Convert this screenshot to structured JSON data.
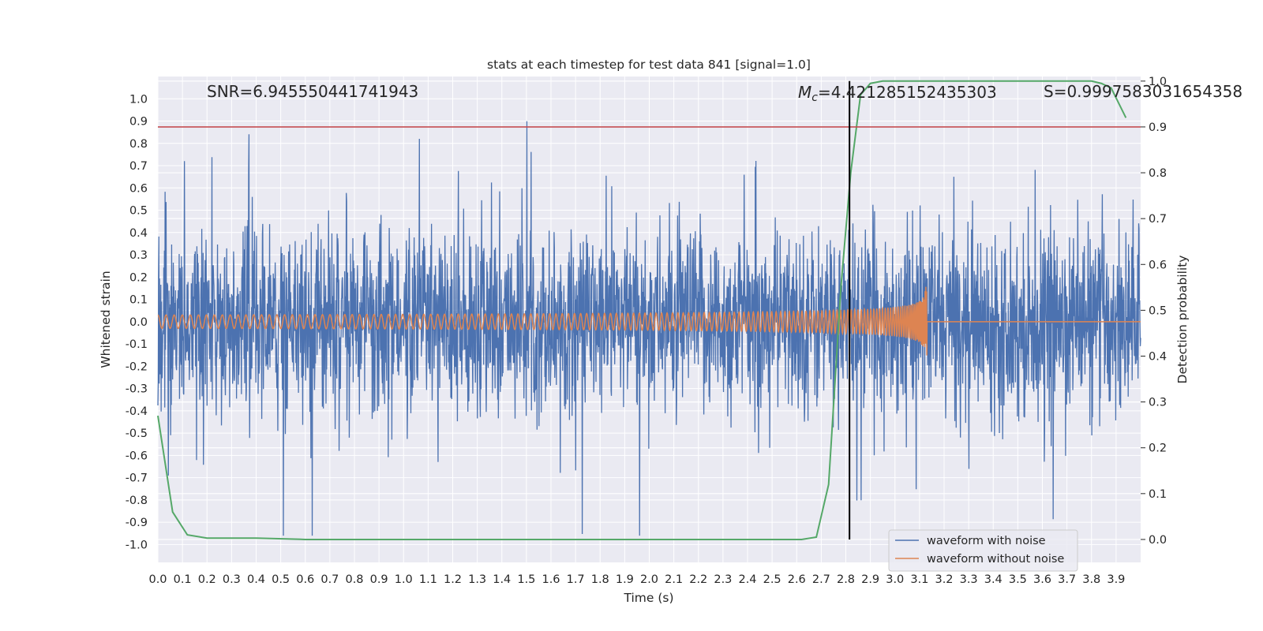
{
  "chart_data": {
    "type": "line",
    "title": "stats at each timestep for test data 841 [signal=1.0]",
    "xlabel": "Time (s)",
    "ylabel_left": "Whitened strain",
    "ylabel_right": "Detection probability",
    "xlim": [
      0.0,
      4.0
    ],
    "ylim_left": [
      -1.08,
      1.1
    ],
    "ylim_right": [
      -0.05,
      1.01
    ],
    "x_ticks": [
      "0.0",
      "0.1",
      "0.2",
      "0.3",
      "0.4",
      "0.5",
      "0.6",
      "0.7",
      "0.8",
      "0.9",
      "1.0",
      "1.1",
      "1.2",
      "1.3",
      "1.4",
      "1.5",
      "1.6",
      "1.7",
      "1.8",
      "1.9",
      "2.0",
      "2.1",
      "2.2",
      "2.3",
      "2.4",
      "2.5",
      "2.6",
      "2.7",
      "2.8",
      "2.9",
      "3.0",
      "3.1",
      "3.2",
      "3.3",
      "3.4",
      "3.5",
      "3.6",
      "3.7",
      "3.8",
      "3.9"
    ],
    "y_ticks_left": [
      "1.0",
      "0.9",
      "0.8",
      "0.7",
      "0.6",
      "0.5",
      "0.4",
      "0.3",
      "0.2",
      "0.1",
      "0.0",
      "-0.1",
      "-0.2",
      "-0.3",
      "-0.4",
      "-0.5",
      "-0.6",
      "-0.7",
      "-0.8",
      "-0.9",
      "-1.0"
    ],
    "y_ticks_right": [
      "1.0",
      "0.9",
      "0.8",
      "0.7",
      "0.6",
      "0.5",
      "0.4",
      "0.3",
      "0.2",
      "0.1",
      "0.0"
    ],
    "annotations": {
      "snr": "SNR=6.945550441741943",
      "mc": "=4.421285152435303",
      "mc_symbol": "M",
      "mc_sub": "c",
      "s": "S=0.9997583031654358"
    },
    "threshold_line": {
      "value": 0.9,
      "axis": "right",
      "color": "#c44e52"
    },
    "vertical_line": {
      "x": 2.815,
      "color": "#000000"
    },
    "series": [
      {
        "name": "waveform with noise",
        "axis": "left",
        "color": "#4c72b0",
        "description_kind": "noisy strain, amplitude ~0.4 typical with spikes up to ~1.0"
      },
      {
        "name": "waveform without noise",
        "axis": "left",
        "color": "#dd8452",
        "chirp": {
          "t_start": 0.0,
          "t_merge": 3.13,
          "amp_start": 0.03,
          "amp_peak": 0.2,
          "f_start": 30
        }
      },
      {
        "name": "",
        "axis": "right",
        "color": "#55a868",
        "x": [
          0.0,
          0.06,
          0.12,
          0.2,
          0.4,
          0.6,
          1.0,
          1.5,
          2.0,
          2.5,
          2.62,
          2.68,
          2.73,
          2.78,
          2.82,
          2.86,
          2.9,
          2.95,
          3.2,
          3.5,
          3.8,
          3.84,
          3.88,
          3.94
        ],
        "values": [
          0.27,
          0.06,
          0.01,
          0.003,
          0.003,
          0.0,
          0.0,
          0.0,
          0.0,
          0.0,
          0.0,
          0.005,
          0.12,
          0.55,
          0.8,
          0.97,
          0.995,
          1.0,
          1.0,
          1.0,
          1.0,
          0.995,
          0.985,
          0.92
        ]
      }
    ],
    "legend": {
      "position": "lower right",
      "entries": [
        {
          "label": "waveform with noise",
          "color": "#4c72b0"
        },
        {
          "label": "waveform without noise",
          "color": "#dd8452"
        }
      ]
    }
  }
}
